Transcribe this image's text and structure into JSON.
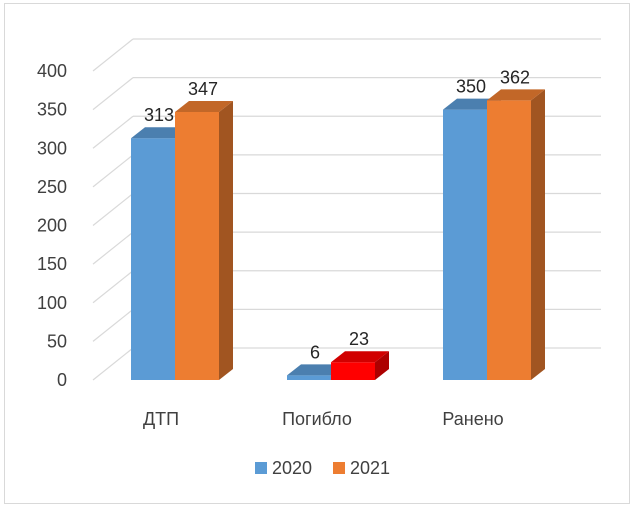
{
  "chart_data": {
    "type": "bar",
    "categories": [
      "ДТП",
      "Погибло",
      "Ранено"
    ],
    "series": [
      {
        "name": "2020",
        "values": [
          313,
          6,
          350
        ],
        "color": "#5B9BD5"
      },
      {
        "name": "2021",
        "values": [
          347,
          23,
          362
        ],
        "color": "#ED7D31"
      }
    ],
    "highlight": {
      "series": 1,
      "category": 1,
      "color": "#FF0000"
    },
    "ylim": [
      0,
      400
    ],
    "yticks": [
      "0",
      "50",
      "100",
      "150",
      "200",
      "250",
      "300",
      "350",
      "400"
    ],
    "data_labels": [
      [
        "313",
        "6",
        "350"
      ],
      [
        "347",
        "23",
        "362"
      ]
    ],
    "grid": true,
    "style": "3d-clustered-column",
    "legend_position": "bottom"
  }
}
